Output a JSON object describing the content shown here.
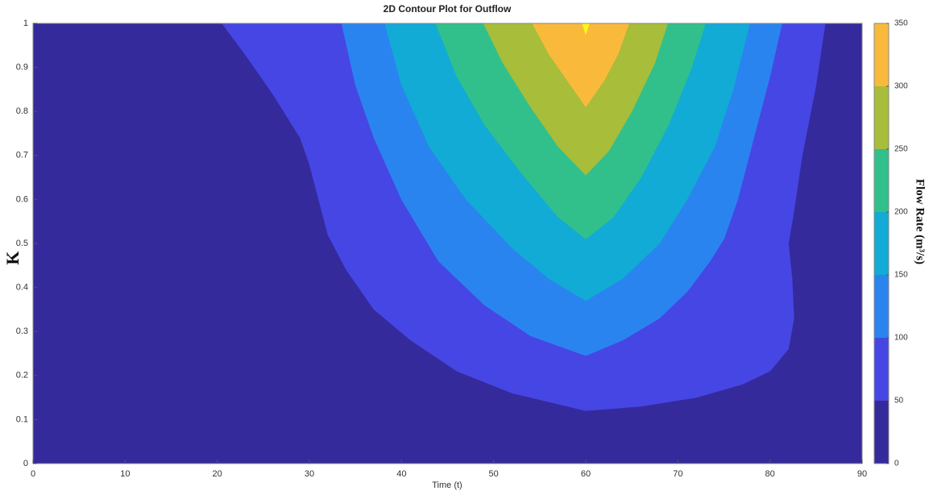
{
  "chart_data": {
    "type": "contourf",
    "title": "2D Contour Plot for Outflow",
    "x_label": "Time (t)",
    "y_label": "K",
    "colorbar_label": "Flow Rate (m³/s)",
    "xlim": [
      0,
      90
    ],
    "xticks": [
      0,
      10,
      20,
      30,
      40,
      50,
      60,
      70,
      80,
      90
    ],
    "ylim": [
      0,
      1
    ],
    "yticks": [
      0,
      0.1,
      0.2,
      0.3,
      0.4,
      0.5,
      0.6,
      0.7,
      0.8,
      0.9,
      1
    ],
    "clim": [
      0,
      350
    ],
    "cticks": [
      0,
      50,
      100,
      150,
      200,
      250,
      300,
      350
    ],
    "base_color": "#352a9b",
    "contours": [
      {
        "level": 50,
        "color": "#4646e4",
        "x": [
          20.5,
          23,
          26,
          29,
          30,
          31,
          32,
          34,
          37,
          41,
          46,
          52,
          60,
          66,
          72,
          77,
          80,
          82,
          82.6,
          82.4,
          82,
          82.5,
          83.5,
          85,
          86
        ],
        "y": [
          1,
          0.93,
          0.84,
          0.74,
          0.68,
          0.6,
          0.52,
          0.44,
          0.35,
          0.28,
          0.21,
          0.16,
          0.12,
          0.13,
          0.15,
          0.18,
          0.21,
          0.26,
          0.33,
          0.42,
          0.5,
          0.56,
          0.7,
          0.86,
          1
        ]
      },
      {
        "level": 100,
        "color": "#2a84f0",
        "x": [
          33.5,
          35,
          37,
          40,
          44,
          49,
          54,
          60,
          64,
          68,
          71,
          73.5,
          75,
          76.5,
          78.5,
          80,
          81.3
        ],
        "y": [
          1,
          0.86,
          0.74,
          0.6,
          0.46,
          0.36,
          0.29,
          0.245,
          0.28,
          0.33,
          0.39,
          0.46,
          0.51,
          0.6,
          0.76,
          0.88,
          1
        ]
      },
      {
        "level": 150,
        "color": "#12abd5",
        "x": [
          38.2,
          40,
          43,
          47,
          52,
          56,
          60,
          64,
          68,
          71,
          74,
          76,
          77.8
        ],
        "y": [
          1,
          0.86,
          0.72,
          0.6,
          0.49,
          0.42,
          0.37,
          0.42,
          0.5,
          0.6,
          0.72,
          0.85,
          1
        ]
      },
      {
        "level": 200,
        "color": "#31c08c",
        "x": [
          43.7,
          46,
          49,
          53,
          57,
          60,
          63,
          66,
          69,
          71.5,
          73
        ],
        "y": [
          1,
          0.88,
          0.77,
          0.66,
          0.56,
          0.51,
          0.56,
          0.65,
          0.77,
          0.9,
          1
        ]
      },
      {
        "level": 250,
        "color": "#a8bd3a",
        "x": [
          48.9,
          51,
          54,
          57,
          60,
          62.5,
          65,
          67.5,
          68.9
        ],
        "y": [
          1,
          0.91,
          0.81,
          0.72,
          0.655,
          0.71,
          0.8,
          0.91,
          1
        ]
      },
      {
        "level": 300,
        "color": "#f9ba3c",
        "x": [
          54.2,
          56,
          58,
          60,
          62,
          63.5,
          64.7
        ],
        "y": [
          1,
          0.93,
          0.87,
          0.81,
          0.87,
          0.93,
          1
        ]
      },
      {
        "level": 350,
        "color": "#f8fa14",
        "x": [
          59.6,
          60,
          60.4
        ],
        "y": [
          1,
          0.975,
          1
        ]
      }
    ]
  }
}
